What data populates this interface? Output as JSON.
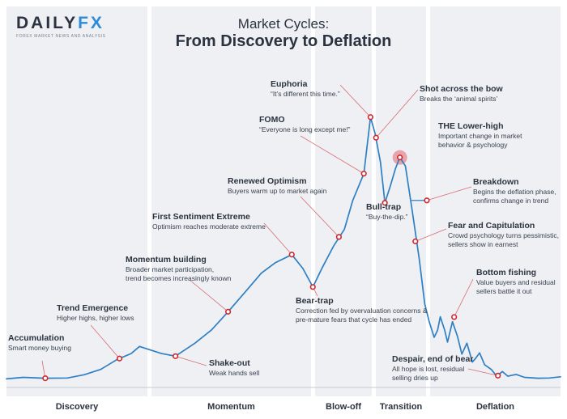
{
  "brand": {
    "logo_main": "DAILY",
    "logo_accent": "FX",
    "tagline": "FOREX MARKET NEWS AND ANALYSIS"
  },
  "title": {
    "line1": "Market Cycles:",
    "line2": "From Discovery to Deflation"
  },
  "phases": [
    {
      "key": "discovery",
      "label": "Discovery"
    },
    {
      "key": "momentum",
      "label": "Momentum"
    },
    {
      "key": "blowoff",
      "label": "Blow-off"
    },
    {
      "key": "transition",
      "label": "Transition"
    },
    {
      "key": "deflation",
      "label": "Deflation"
    }
  ],
  "annotations": [
    {
      "key": "accumulation",
      "heading": "Accumulation",
      "desc": [
        "Smart money buying"
      ]
    },
    {
      "key": "trend-emergence",
      "heading": "Trend Emergence",
      "desc": [
        "Higher highs, higher lows"
      ]
    },
    {
      "key": "momentum-building",
      "heading": "Momentum building",
      "desc": [
        "Broader market participation,",
        "trend becomes increasingly known"
      ]
    },
    {
      "key": "shake-out",
      "heading": "Shake-out",
      "desc": [
        "Weak hands sell"
      ]
    },
    {
      "key": "first-sentiment-extreme",
      "heading": "First Sentiment Extreme",
      "desc": [
        "Optimism reaches moderate extreme"
      ]
    },
    {
      "key": "bear-trap",
      "heading": "Bear-trap",
      "desc": [
        "Correction fed by overvaluation concerns &",
        "pre-mature fears that cycle has ended"
      ]
    },
    {
      "key": "renewed-optimism",
      "heading": "Renewed Optimism",
      "desc": [
        "Buyers warm up to market again"
      ]
    },
    {
      "key": "fomo",
      "heading": "FOMO",
      "desc": [
        "“Everyone is long except me!”"
      ]
    },
    {
      "key": "euphoria",
      "heading": "Euphoria",
      "desc": [
        "“It’s different this time.”"
      ]
    },
    {
      "key": "shot-across-bow",
      "heading": "Shot across the bow",
      "desc": [
        "Breaks the ‘animal spirits’"
      ]
    },
    {
      "key": "bull-trap",
      "heading": "Bull-trap",
      "desc": [
        "“Buy-the-dip.”"
      ]
    },
    {
      "key": "lower-high",
      "heading": "THE Lower-high",
      "desc": [
        "Important change in market",
        "behavior & psychology"
      ]
    },
    {
      "key": "breakdown",
      "heading": "Breakdown",
      "desc": [
        "Begins the deflation phase,",
        "confirms change in trend"
      ]
    },
    {
      "key": "fear-capitulation",
      "heading": "Fear and Capitulation",
      "desc": [
        "Crowd psychology turns pessimistic,",
        "sellers show in earnest"
      ]
    },
    {
      "key": "bottom-fishing",
      "heading": "Bottom fishing",
      "desc": [
        "Value buyers and residual",
        "sellers battle it out"
      ]
    },
    {
      "key": "despair",
      "heading": "Despair, end of bear",
      "desc": [
        "All hope is lost, residual",
        "selling dries up"
      ]
    }
  ],
  "chart_data": {
    "type": "line",
    "title": "Market Cycles: From Discovery to Deflation",
    "xlabel": "",
    "ylabel": "",
    "xlim": [
      0,
      100
    ],
    "ylim": [
      0,
      100
    ],
    "grid": false,
    "phases": [
      {
        "label": "Discovery",
        "x_range": [
          0,
          26.5
        ]
      },
      {
        "label": "Momentum",
        "x_range": [
          26.5,
          55.5
        ]
      },
      {
        "label": "Blow-off",
        "x_range": [
          55.5,
          66
        ]
      },
      {
        "label": "Transition",
        "x_range": [
          66,
          75.5
        ]
      },
      {
        "label": "Deflation",
        "x_range": [
          75.5,
          100
        ]
      }
    ],
    "series": [
      {
        "name": "Price",
        "points": [
          [
            0,
            1
          ],
          [
            3,
            1.5
          ],
          [
            7,
            1.2
          ],
          [
            11,
            1.3
          ],
          [
            14,
            2.4
          ],
          [
            17,
            4.2
          ],
          [
            20,
            7.6
          ],
          [
            22.5,
            9.6
          ],
          [
            24,
            12
          ],
          [
            26,
            10.8
          ],
          [
            28,
            9.6
          ],
          [
            30.5,
            8.7
          ],
          [
            32,
            10.6
          ],
          [
            34,
            13.1
          ],
          [
            37,
            17.6
          ],
          [
            40,
            23.8
          ],
          [
            43,
            30.3
          ],
          [
            46,
            36.9
          ],
          [
            48.5,
            40.4
          ],
          [
            51.5,
            43.2
          ],
          [
            53.5,
            38.5
          ],
          [
            55.3,
            32.2
          ],
          [
            57,
            38.8
          ],
          [
            59,
            46
          ],
          [
            61,
            51.8
          ],
          [
            62.5,
            61.6
          ],
          [
            64.5,
            70.7
          ],
          [
            65.7,
            89.9
          ],
          [
            66.5,
            84.5
          ],
          [
            67.5,
            74.6
          ],
          [
            68.3,
            60.8
          ],
          [
            69.3,
            66.6
          ],
          [
            70.2,
            72.4
          ],
          [
            71,
            76.2
          ],
          [
            72,
            73.3
          ],
          [
            73.2,
            58.5
          ],
          [
            74.5,
            41.7
          ],
          [
            75.5,
            26.4
          ],
          [
            76.3,
            20.4
          ],
          [
            77.2,
            15.1
          ],
          [
            77.8,
            17.5
          ],
          [
            78.3,
            22.1
          ],
          [
            79.1,
            17.5
          ],
          [
            79.6,
            13.5
          ],
          [
            80.5,
            20.4
          ],
          [
            81.4,
            15.4
          ],
          [
            82.2,
            9.4
          ],
          [
            83.1,
            13.1
          ],
          [
            84.1,
            6.7
          ],
          [
            84.6,
            7.8
          ],
          [
            85.4,
            9.8
          ],
          [
            86.3,
            5.8
          ],
          [
            87.5,
            4.2
          ],
          [
            88.5,
            1.9
          ],
          [
            89.5,
            3.5
          ],
          [
            90.5,
            1.9
          ],
          [
            92,
            2.5
          ],
          [
            93.5,
            1.5
          ],
          [
            96,
            1.2
          ],
          [
            98,
            1.3
          ],
          [
            100,
            1.7
          ]
        ]
      }
    ],
    "markers": [
      {
        "label": "Accumulation",
        "x": 7,
        "y": 1.2
      },
      {
        "label": "Trend Emergence",
        "x": 20.4,
        "y": 7.9
      },
      {
        "label": "Shake-out",
        "x": 30.5,
        "y": 8.7
      },
      {
        "label": "Momentum building",
        "x": 40,
        "y": 23.8
      },
      {
        "label": "First Sentiment Extreme",
        "x": 51.5,
        "y": 43.2
      },
      {
        "label": "Bear-trap",
        "x": 55.3,
        "y": 32.2
      },
      {
        "label": "Renewed Optimism",
        "x": 60,
        "y": 49.2
      },
      {
        "label": "FOMO",
        "x": 64.5,
        "y": 70.7
      },
      {
        "label": "Euphoria",
        "x": 65.7,
        "y": 89.9
      },
      {
        "label": "Shot across the bow",
        "x": 66.7,
        "y": 82.9
      },
      {
        "label": "Bull-trap",
        "x": 68.3,
        "y": 60.8
      },
      {
        "label": "THE Lower-high",
        "x": 71,
        "y": 76.2
      },
      {
        "label": "Fear and Capitulation",
        "x": 73.8,
        "y": 47.7
      },
      {
        "label": "Bottom fishing",
        "x": 80.8,
        "y": 22
      },
      {
        "label": "Despair, end of bear",
        "x": 88.7,
        "y": 2.1
      }
    ],
    "breakdown_level": 61.6,
    "highlight": {
      "label": "THE Lower-high",
      "x": 71,
      "y": 76.2
    }
  },
  "colors": {
    "line": "#2e7fc3",
    "marker": "#d2232a",
    "leader": "#d96a73",
    "highlight": "#e48b94",
    "phase_bg": "#eef0f3",
    "text": "#2b3340",
    "accent": "#2e8bd8"
  }
}
